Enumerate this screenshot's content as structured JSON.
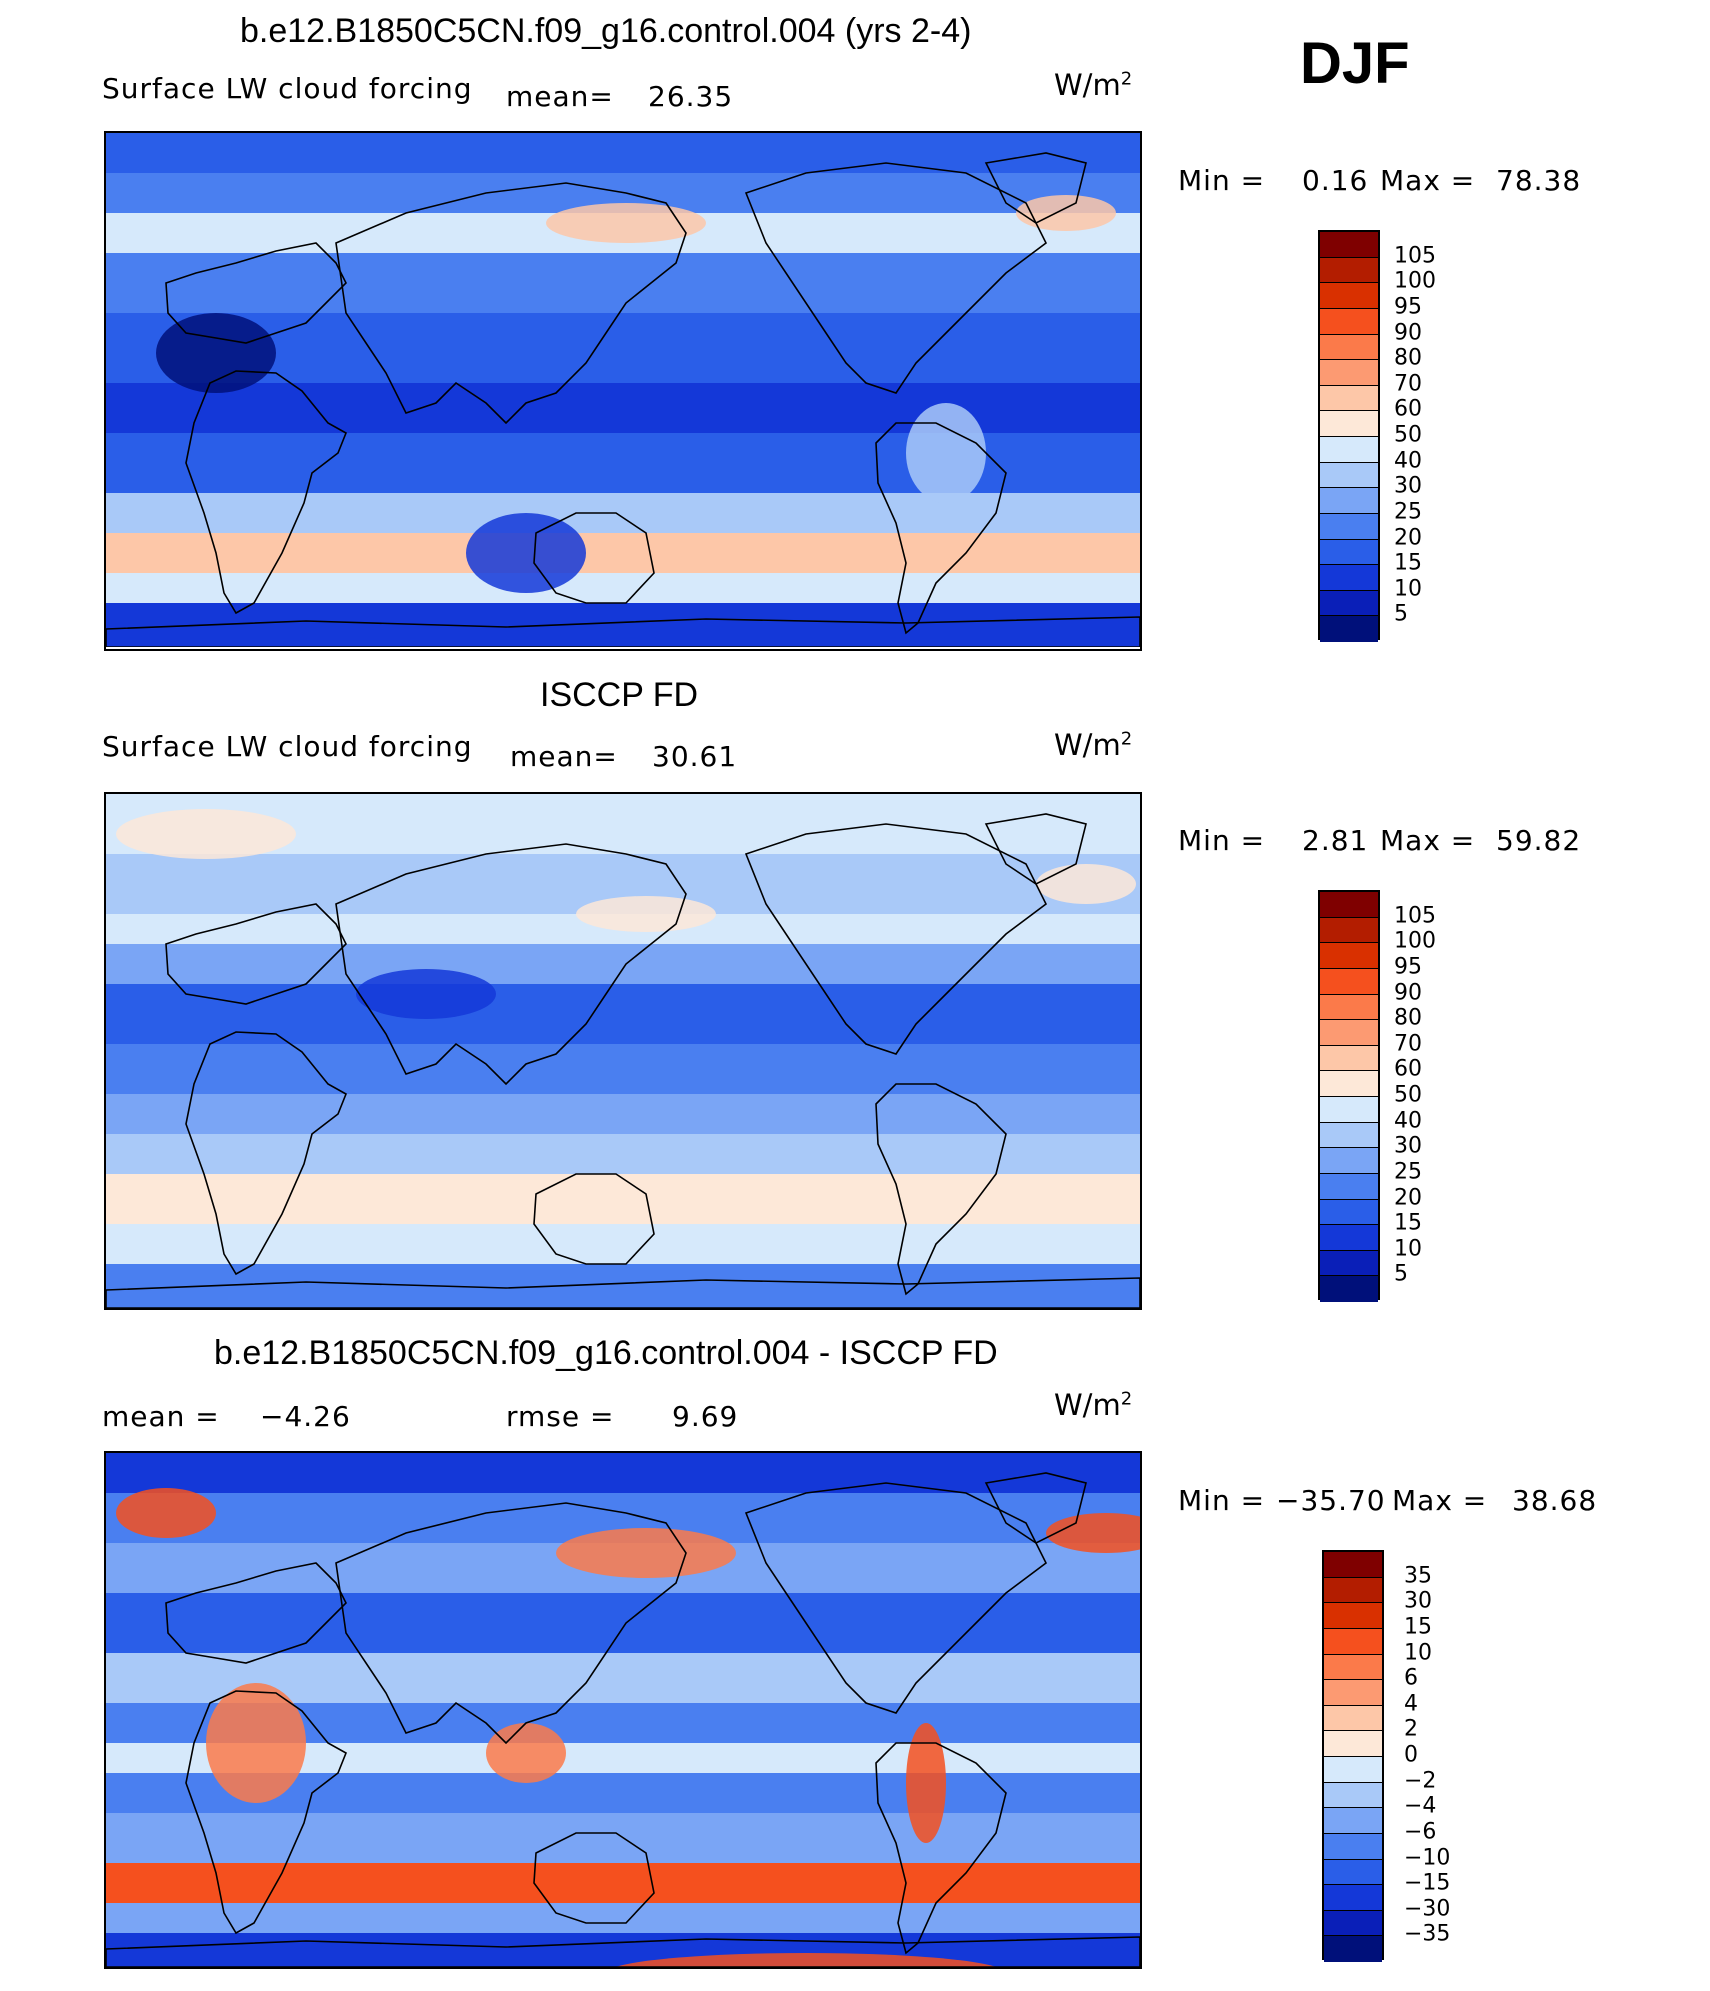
{
  "season": "DJF",
  "units_base": "W/m",
  "units_exp": "2",
  "panels": [
    {
      "title": "b.e12.B1850C5CN.f09_g16.control.004 (yrs 2-4)",
      "variable": "Surface LW cloud forcing",
      "mean_label": "mean=",
      "mean_value": "26.35",
      "min_label": "Min =",
      "min_value": "0.16",
      "max_label": "Max =",
      "max_value": "78.38",
      "levels": [
        "105",
        "100",
        "95",
        "90",
        "80",
        "70",
        "60",
        "50",
        "40",
        "30",
        "25",
        "20",
        "15",
        "10",
        "5"
      ],
      "colors": [
        "#7f0000",
        "#b31d00",
        "#d93000",
        "#f5501e",
        "#fb7a4a",
        "#fc9a72",
        "#fdc7a8",
        "#fde8d8",
        "#d6e9fb",
        "#a9c9f8",
        "#7aa5f5",
        "#4a7ff0",
        "#2a5ee8",
        "#1438d8",
        "#0a1fb8",
        "#00107a"
      ],
      "map_style": "model"
    },
    {
      "title": "ISCCP FD",
      "variable": "Surface LW cloud forcing",
      "mean_label": "mean=",
      "mean_value": "30.61",
      "min_label": "Min =",
      "min_value": "2.81",
      "max_label": "Max =",
      "max_value": "59.82",
      "levels": [
        "105",
        "100",
        "95",
        "90",
        "80",
        "70",
        "60",
        "50",
        "40",
        "30",
        "25",
        "20",
        "15",
        "10",
        "5"
      ],
      "colors": [
        "#7f0000",
        "#b31d00",
        "#d93000",
        "#f5501e",
        "#fb7a4a",
        "#fc9a72",
        "#fdc7a8",
        "#fde8d8",
        "#d6e9fb",
        "#a9c9f8",
        "#7aa5f5",
        "#4a7ff0",
        "#2a5ee8",
        "#1438d8",
        "#0a1fb8",
        "#00107a"
      ],
      "map_style": "obs"
    },
    {
      "title": "b.e12.B1850C5CN.f09_g16.control.004 - ISCCP FD",
      "mean_label": "mean =",
      "mean_value": "−4.26",
      "rmse_label": "rmse =",
      "rmse_value": "9.69",
      "min_label": "Min =",
      "min_value": "−35.70",
      "max_label": "Max =",
      "max_value": "38.68",
      "levels": [
        "35",
        "30",
        "15",
        "10",
        "6",
        "4",
        "2",
        "0",
        "−2",
        "−4",
        "−6",
        "−10",
        "−15",
        "−30",
        "−35"
      ],
      "colors": [
        "#7f0000",
        "#b31d00",
        "#d93000",
        "#f5501e",
        "#fb7a4a",
        "#fc9a72",
        "#fdc7a8",
        "#fde8d8",
        "#d6e9fb",
        "#a9c9f8",
        "#7aa5f5",
        "#4a7ff0",
        "#2a5ee8",
        "#1438d8",
        "#0a1fb8",
        "#00107a"
      ],
      "map_style": "diff"
    }
  ]
}
